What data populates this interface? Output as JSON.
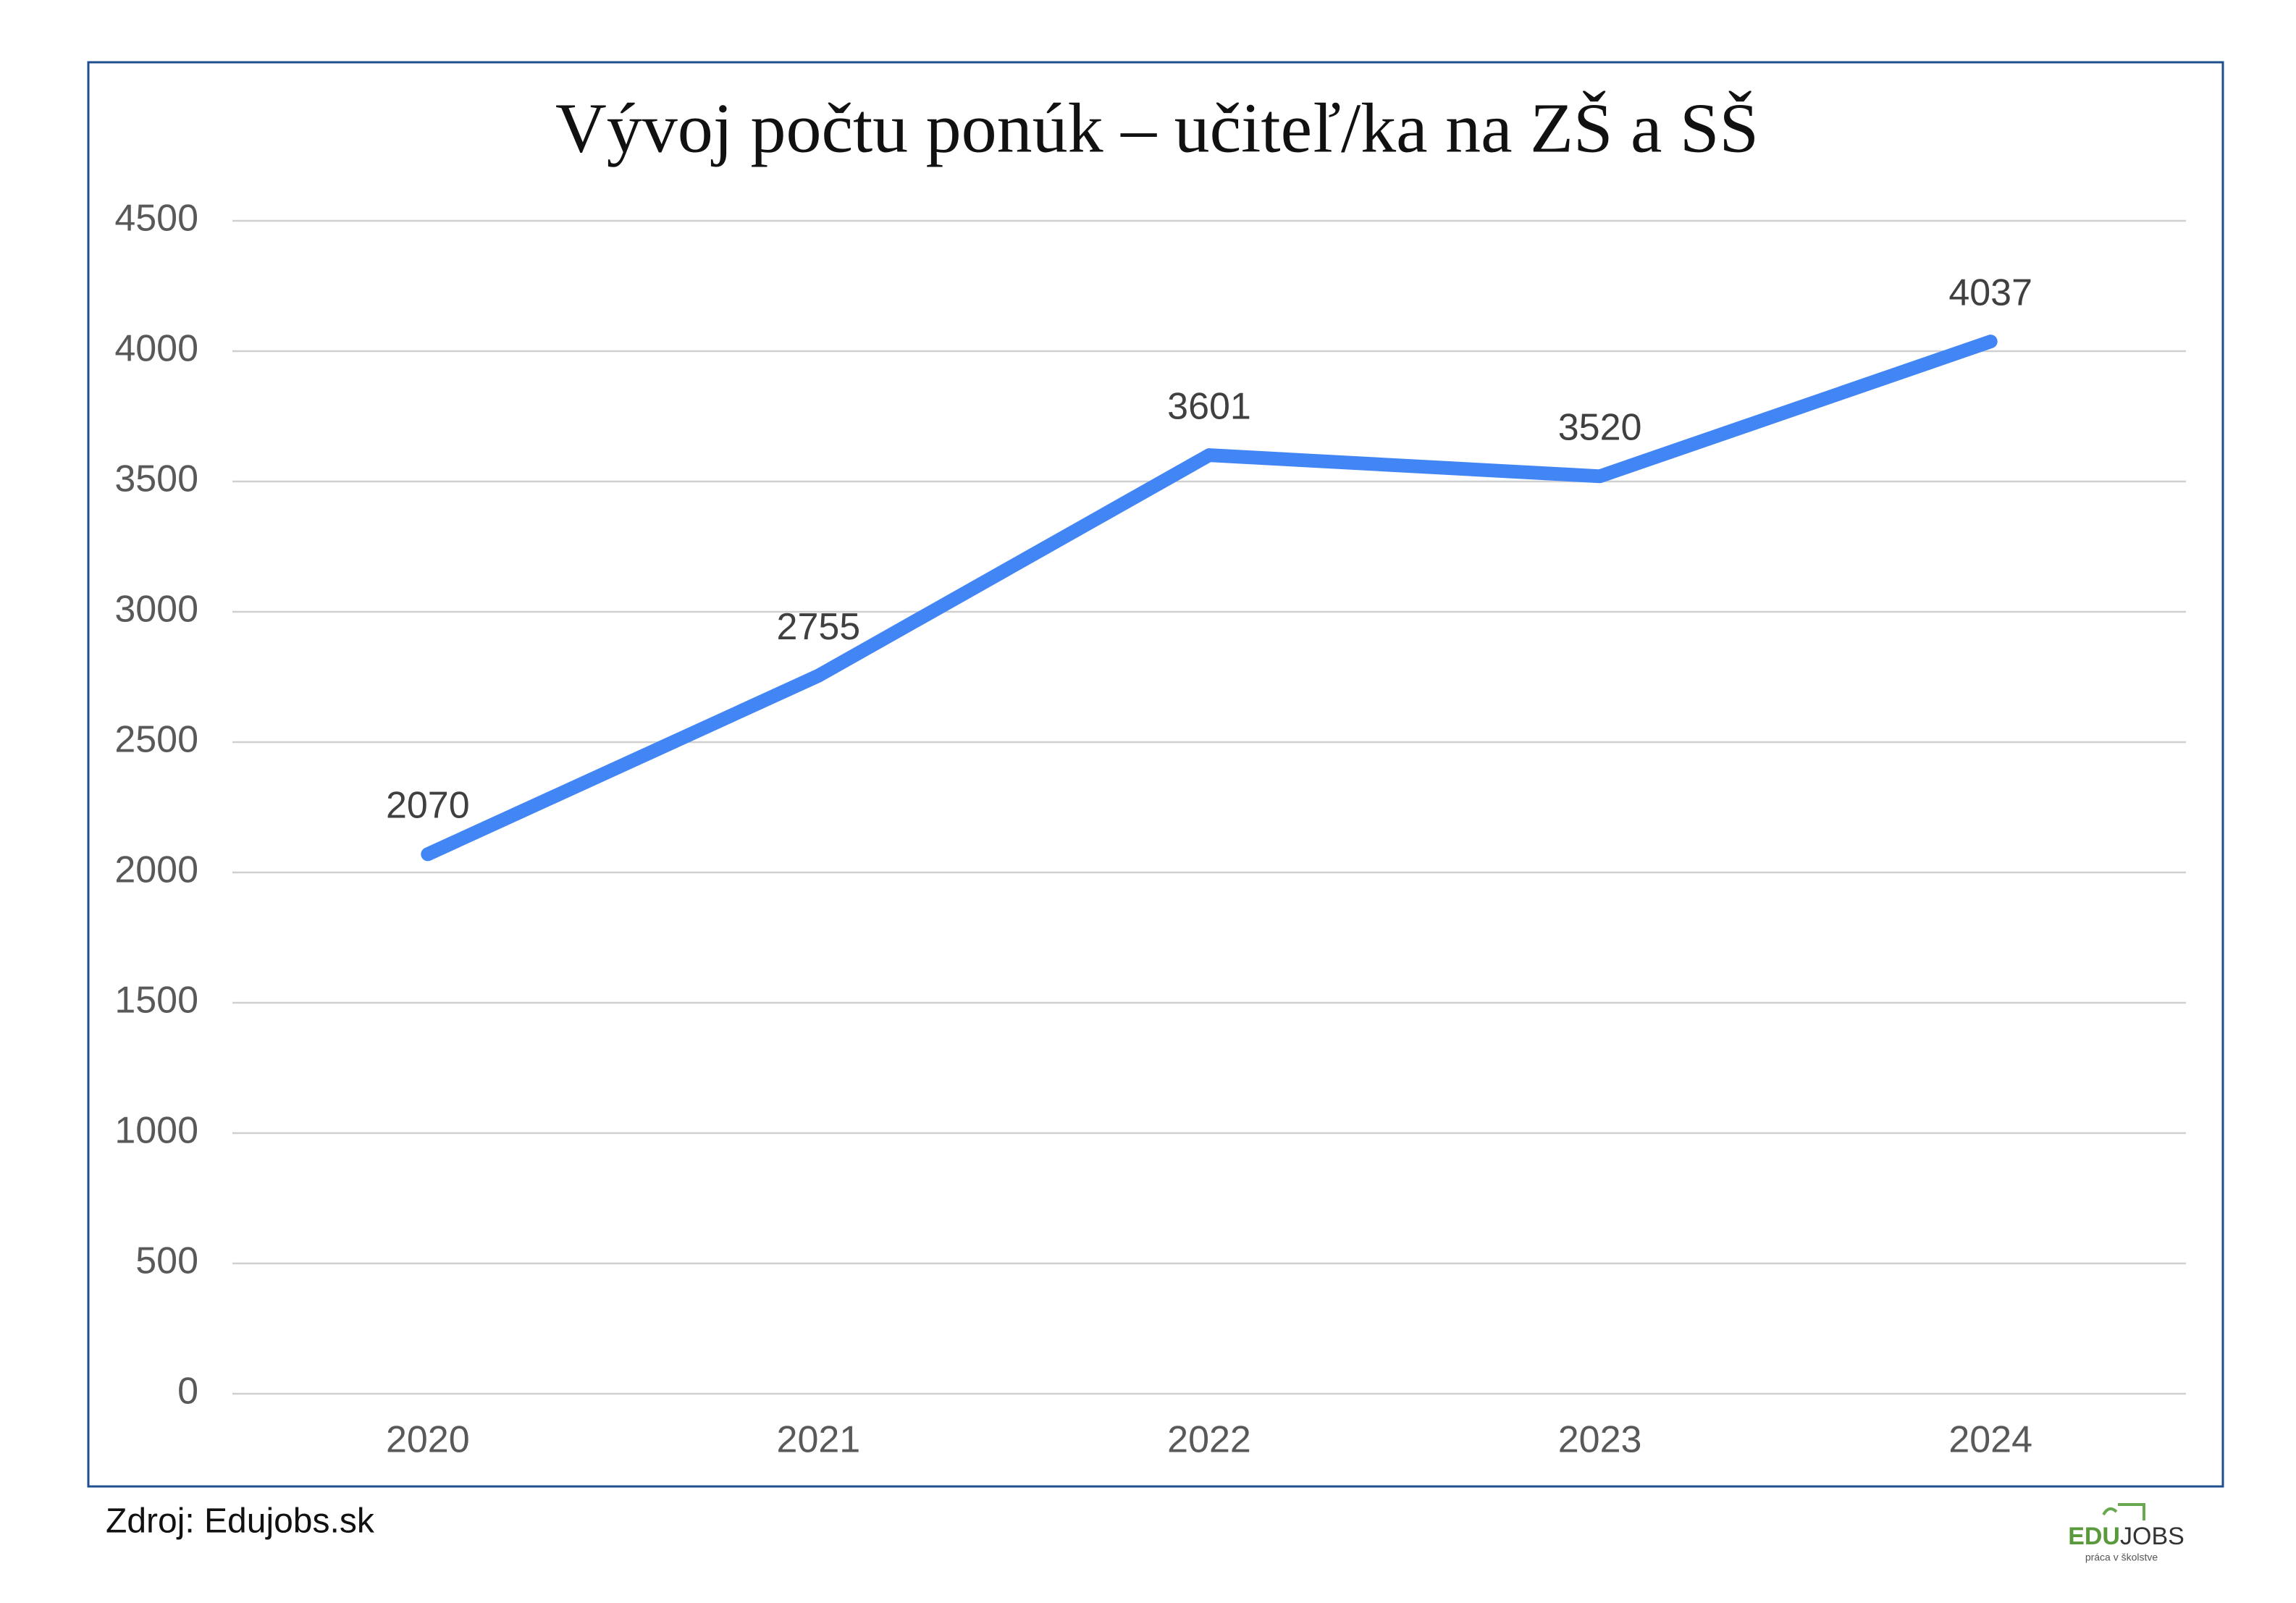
{
  "chart_data": {
    "type": "line",
    "title": "Vývoj počtu ponúk – učiteľ/ka na ZŠ a SŠ",
    "categories": [
      "2020",
      "2021",
      "2022",
      "2023",
      "2024"
    ],
    "values": [
      2070,
      2755,
      3601,
      3520,
      4037
    ],
    "color": "#4285f4",
    "ylim": [
      0,
      4500
    ],
    "yticks": [
      0,
      500,
      1000,
      1500,
      2000,
      2500,
      3000,
      3500,
      4000,
      4500
    ],
    "grid": true
  },
  "footer": {
    "source": "Zdroj: Edujobs.sk",
    "logo_edu": "EDU",
    "logo_jobs": "JOBS",
    "logo_tagline": "práca v školstve"
  }
}
